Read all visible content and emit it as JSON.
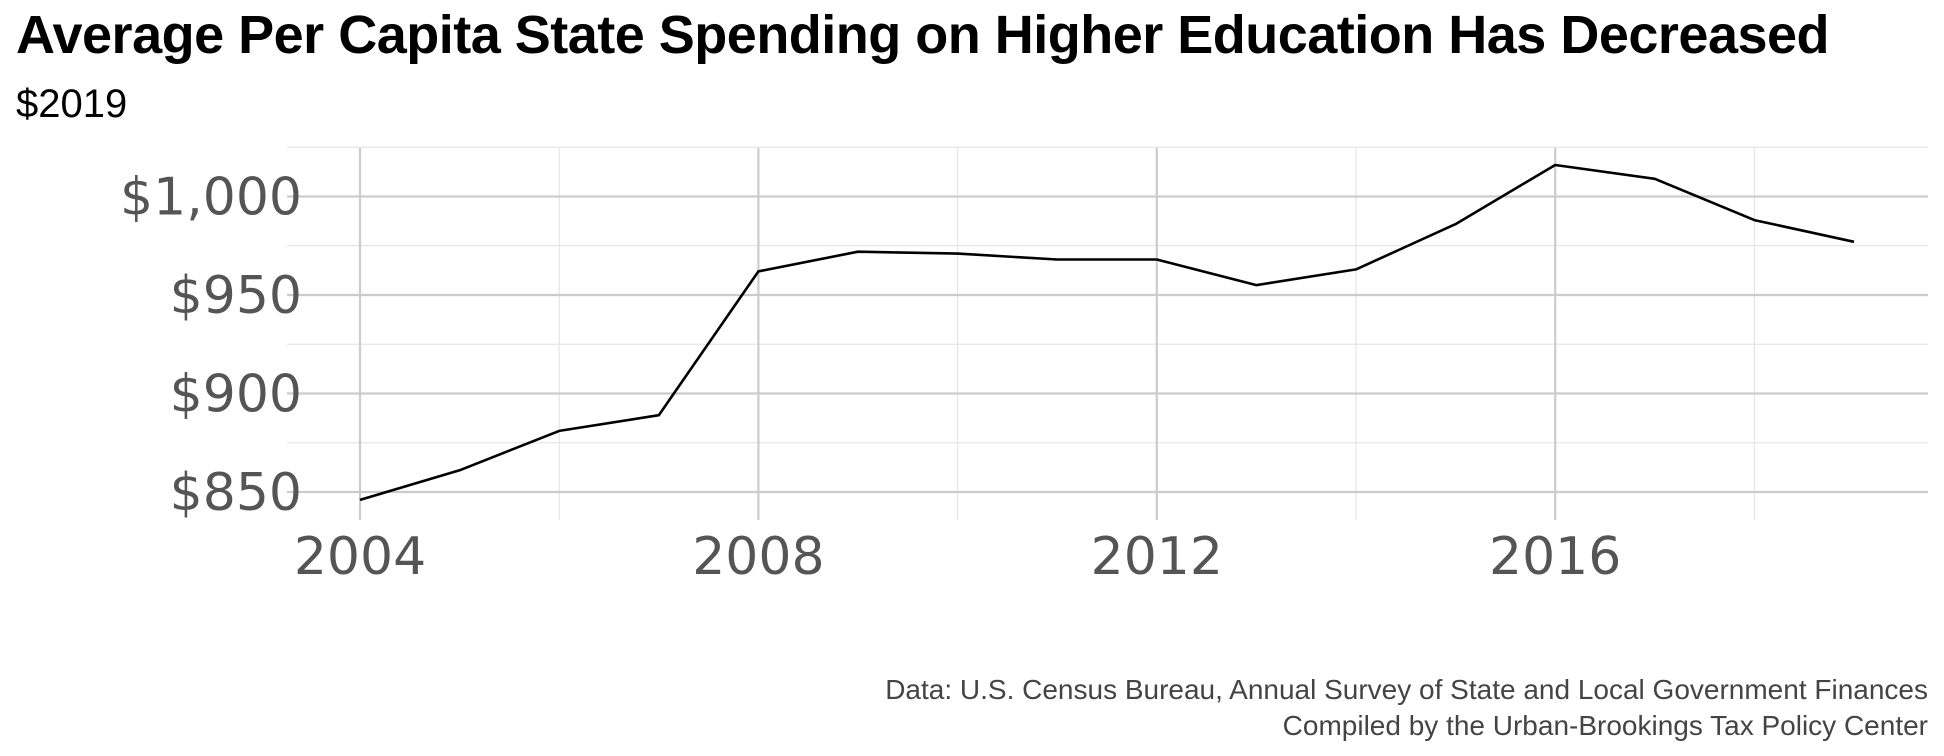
{
  "chart_data": {
    "type": "line",
    "title": "Average Per Capita State Spending on Higher Education Has Decreased",
    "subtitle": "$2019",
    "x": [
      2004,
      2005,
      2006,
      2007,
      2008,
      2009,
      2010,
      2011,
      2012,
      2013,
      2014,
      2015,
      2016,
      2017,
      2018,
      2019
    ],
    "series": [
      {
        "values": [
          846,
          861,
          881,
          889,
          962,
          972,
          971,
          968,
          968,
          955,
          963,
          986,
          1016,
          1009,
          988,
          977
        ]
      }
    ],
    "x_ticks": [
      "2004",
      "2008",
      "2012",
      "2016"
    ],
    "y_ticks": [
      "$850",
      "$900",
      "$950",
      "$1,000"
    ],
    "xlim": [
      2004,
      2019
    ],
    "ylim": [
      850,
      1000
    ],
    "grid": true,
    "line_color": "#000000",
    "grid_color": "#cccccc",
    "caption": [
      "Data: U.S. Census Bureau, Annual Survey of State and Local Government Finances",
      "Compiled by the Urban-Brookings Tax Policy Center"
    ]
  }
}
